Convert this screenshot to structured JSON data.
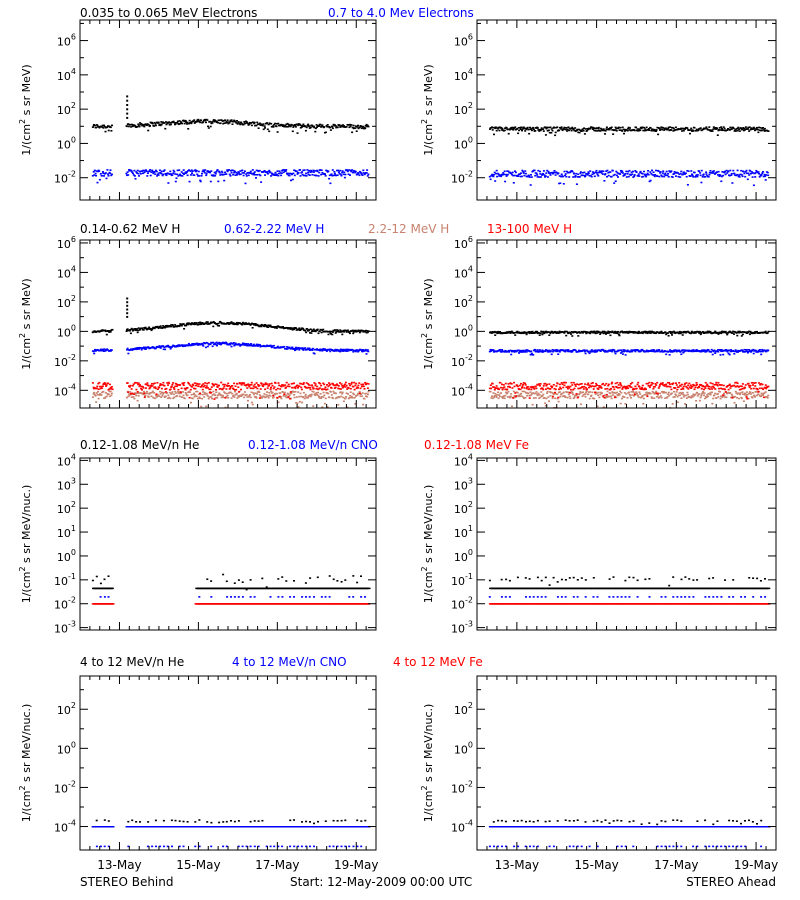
{
  "colors": {
    "black": "#000000",
    "blue": "#0000ff",
    "salmon": "#c8826e",
    "red": "#ff0000"
  },
  "footer": {
    "left": "STEREO Behind",
    "center": "Start: 12-May-2009 00:00 UTC",
    "right": "STEREO Ahead"
  },
  "x_axis": {
    "tick_labels": [
      "13-May",
      "15-May",
      "17-May",
      "19-May"
    ],
    "tick_days": [
      1,
      3,
      5,
      7
    ],
    "range_days": [
      0,
      7.5
    ]
  },
  "chart_data": [
    {
      "type": "scatter",
      "row": 0,
      "legend": [
        {
          "label": "0.035 to 0.065 MeV Electrons",
          "color": "black"
        },
        {
          "label": "0.7 to 4.0 Mev Electrons",
          "color": "blue"
        }
      ],
      "ylabel_main": "1/(cm",
      "ylabel_sup": "2",
      "ylabel_rest": " s sr MeV)",
      "yscale": "log",
      "ylim_log10": [
        -3.3,
        7.2
      ],
      "yticks": [
        {
          "b": "10",
          "e": "-2",
          "v": -2
        },
        {
          "b": "10",
          "e": "0",
          "v": 0
        },
        {
          "b": "10",
          "e": "2",
          "v": 2
        },
        {
          "b": "10",
          "e": "4",
          "v": 4
        },
        {
          "b": "10",
          "e": "6",
          "v": 6
        }
      ],
      "panels": {
        "behind": {
          "gaps": [
            [
              0.8,
              1.15
            ]
          ],
          "series": [
            {
              "name": "0.035 to 0.065 MeV Electrons",
              "color": "black",
              "base_log10": 1.0,
              "spread": 0.12,
              "bump": 0.3,
              "bump_center": 3.2,
              "bump_width": 1.6,
              "spike_day": 1.17,
              "spike_log10": 2.8
            },
            {
              "name": "0.7 to 4.0 Mev Electrons",
              "color": "blue",
              "base_log10": -1.7,
              "spread": 0.18
            }
          ]
        },
        "ahead": {
          "gaps": [],
          "series": [
            {
              "name": "0.035 to 0.065 MeV Electrons",
              "color": "black",
              "base_log10": 0.85,
              "spread": 0.12
            },
            {
              "name": "0.7 to 4.0 Mev Electrons",
              "color": "blue",
              "base_log10": -1.75,
              "spread": 0.2
            }
          ]
        }
      }
    },
    {
      "type": "scatter",
      "row": 1,
      "legend": [
        {
          "label": "0.14-0.62 MeV H",
          "color": "black"
        },
        {
          "label": "0.62-2.22 MeV H",
          "color": "blue"
        },
        {
          "label": "2.2-12 MeV H",
          "color": "salmon"
        },
        {
          "label": "13-100 MeV H",
          "color": "red"
        }
      ],
      "ylabel_main": "1/(cm",
      "ylabel_sup": "2",
      "ylabel_rest": " s sr MeV)",
      "yscale": "log",
      "ylim_log10": [
        -5.2,
        6.2
      ],
      "yticks": [
        {
          "b": "10",
          "e": "-4",
          "v": -4
        },
        {
          "b": "10",
          "e": "-2",
          "v": -2
        },
        {
          "b": "10",
          "e": "0",
          "v": 0
        },
        {
          "b": "10",
          "e": "2",
          "v": 2
        },
        {
          "b": "10",
          "e": "4",
          "v": 4
        },
        {
          "b": "10",
          "e": "6",
          "v": 6
        }
      ],
      "panels": {
        "behind": {
          "gaps": [
            [
              0.8,
              1.15
            ]
          ],
          "series": [
            {
              "name": "0.14-0.62 MeV H",
              "color": "black",
              "base_log10": 0.0,
              "spread": 0.08,
              "bump": 0.6,
              "bump_center": 3.5,
              "bump_width": 1.8,
              "spike_day": 1.17,
              "spike_log10": 2.3
            },
            {
              "name": "0.62-2.22 MeV H",
              "color": "blue",
              "base_log10": -1.3,
              "spread": 0.08,
              "bump": 0.5,
              "bump_center": 3.5,
              "bump_width": 1.8
            },
            {
              "name": "2.2-12 MeV H",
              "color": "salmon",
              "base_log10": -4.3,
              "spread": 0.25
            },
            {
              "name": "13-100 MeV H",
              "color": "red",
              "base_log10": -3.7,
              "spread": 0.25
            }
          ]
        },
        "ahead": {
          "gaps": [],
          "series": [
            {
              "name": "0.14-0.62 MeV H",
              "color": "black",
              "base_log10": -0.05,
              "spread": 0.07
            },
            {
              "name": "0.62-2.22 MeV H",
              "color": "blue",
              "base_log10": -1.3,
              "spread": 0.08
            },
            {
              "name": "2.2-12 MeV H",
              "color": "salmon",
              "base_log10": -4.3,
              "spread": 0.25
            },
            {
              "name": "13-100 MeV H",
              "color": "red",
              "base_log10": -3.7,
              "spread": 0.25
            }
          ]
        }
      }
    },
    {
      "type": "scatter",
      "row": 2,
      "legend": [
        {
          "label": "0.12-1.08 MeV/n He",
          "color": "black"
        },
        {
          "label": "0.12-1.08 MeV/n CNO",
          "color": "blue"
        },
        {
          "label": "0.12-1.08 MeV Fe",
          "color": "red"
        }
      ],
      "ylabel_main": "1/(cm",
      "ylabel_sup": "2",
      "ylabel_rest": " s sr MeV/nuc.)",
      "yscale": "log",
      "ylim_log10": [
        -3.1,
        4.1
      ],
      "yticks": [
        {
          "b": "10",
          "e": "-3",
          "v": -3
        },
        {
          "b": "10",
          "e": "-2",
          "v": -2
        },
        {
          "b": "10",
          "e": "-1",
          "v": -1
        },
        {
          "b": "10",
          "e": "0",
          "v": 0
        },
        {
          "b": "10",
          "e": "1",
          "v": 1
        },
        {
          "b": "10",
          "e": "2",
          "v": 2
        },
        {
          "b": "10",
          "e": "3",
          "v": 3
        },
        {
          "b": "10",
          "e": "4",
          "v": 4
        }
      ],
      "panels": {
        "behind": {
          "gaps": [
            [
              0.8,
              2.9
            ]
          ],
          "series": [
            {
              "name": "0.12-1.08 MeV/n He",
              "color": "black",
              "base_log10": -1.35,
              "spread": 0.0,
              "line": true
            },
            {
              "name": "0.12-1.08 MeV/n He upper",
              "color": "black",
              "base_log10": -0.95,
              "spread": 0.2,
              "sparse": true
            },
            {
              "name": "0.12-1.08 MeV/n CNO",
              "color": "blue",
              "base_log10": -1.7,
              "spread": 0.0,
              "sparse": true
            },
            {
              "name": "0.12-1.08 MeV Fe",
              "color": "red",
              "base_log10": -2.0,
              "spread": 0.0,
              "line": true
            }
          ]
        },
        "ahead": {
          "gaps": [],
          "series": [
            {
              "name": "0.12-1.08 MeV/n He",
              "color": "black",
              "base_log10": -1.35,
              "spread": 0.0,
              "line": true
            },
            {
              "name": "0.12-1.08 MeV/n He upper",
              "color": "black",
              "base_log10": -0.95,
              "spread": 0.08,
              "sparse": true
            },
            {
              "name": "0.12-1.08 MeV/n CNO",
              "color": "blue",
              "base_log10": -1.7,
              "spread": 0.0,
              "sparse": true
            },
            {
              "name": "0.12-1.08 MeV Fe",
              "color": "red",
              "base_log10": -2.0,
              "spread": 0.0,
              "line": true
            }
          ]
        }
      }
    },
    {
      "type": "scatter",
      "row": 3,
      "legend": [
        {
          "label": "4 to 12 MeV/n He",
          "color": "black"
        },
        {
          "label": "4 to 12 MeV/n CNO",
          "color": "blue"
        },
        {
          "label": "4 to 12 MeV Fe",
          "color": "red"
        }
      ],
      "ylabel_main": "1/(cm",
      "ylabel_sup": "2",
      "ylabel_rest": " s sr MeV/nuc.)",
      "yscale": "log",
      "ylim_log10": [
        -5.2,
        3.7
      ],
      "yticks": [
        {
          "b": "10",
          "e": "-4",
          "v": -4
        },
        {
          "b": "10",
          "e": "-2",
          "v": -2
        },
        {
          "b": "10",
          "e": "0",
          "v": 0
        },
        {
          "b": "10",
          "e": "2",
          "v": 2
        }
      ],
      "panels": {
        "behind": {
          "gaps": [
            [
              0.8,
              1.15
            ]
          ],
          "series": [
            {
              "name": "4 to 12 MeV/n He",
              "color": "black",
              "base_log10": -4.0,
              "spread": 0.0,
              "line": true
            },
            {
              "name": "4 to 12 MeV/n He upper",
              "color": "black",
              "base_log10": -3.7,
              "spread": 0.05,
              "sparse": true
            },
            {
              "name": "4 to 12 MeV/n CNO",
              "color": "blue",
              "base_log10": -4.0,
              "spread": 0.0,
              "line": true
            },
            {
              "name": "4 to 12 MeV/n CNO lower",
              "color": "blue",
              "base_log10": -5.0,
              "spread": 0.0,
              "sparse": true
            }
          ]
        },
        "ahead": {
          "gaps": [],
          "series": [
            {
              "name": "4 to 12 MeV/n He",
              "color": "black",
              "base_log10": -4.0,
              "spread": 0.0,
              "line": true
            },
            {
              "name": "4 to 12 MeV/n He upper",
              "color": "black",
              "base_log10": -3.7,
              "spread": 0.05,
              "sparse": true
            },
            {
              "name": "4 to 12 MeV/n CNO",
              "color": "blue",
              "base_log10": -4.0,
              "spread": 0.0,
              "line": true
            },
            {
              "name": "4 to 12 MeV/n CNO lower",
              "color": "blue",
              "base_log10": -5.0,
              "spread": 0.0,
              "sparse": true
            }
          ]
        }
      }
    }
  ]
}
